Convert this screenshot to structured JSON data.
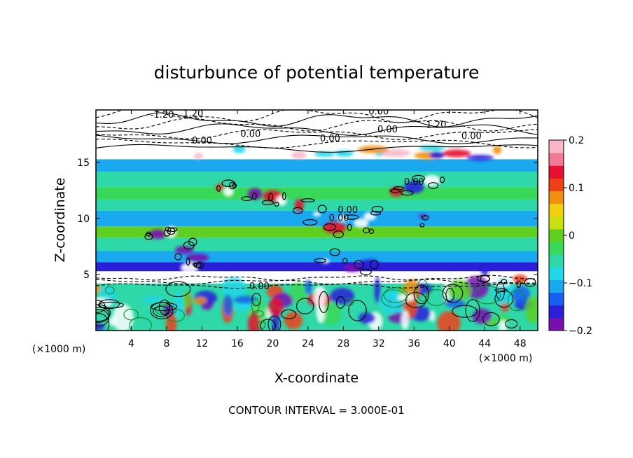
{
  "chart_data": {
    "type": "heatmap",
    "title": "disturbunce of potential temperature",
    "xlabel": "X-coordinate",
    "ylabel": "Z-coordinate",
    "x_unit_label": "(×1000 m)",
    "x_unit_label_right": "(×1000 m)",
    "x_ticks": [
      4,
      8,
      12,
      16,
      20,
      24,
      28,
      32,
      36,
      40,
      44,
      48
    ],
    "y_ticks": [
      5,
      10,
      15
    ],
    "xlim": [
      0,
      50
    ],
    "ylim": [
      0,
      19.7
    ],
    "colorbar": {
      "range": [
        -0.2,
        0.2
      ],
      "tick_values": [
        0.2,
        0.1,
        0,
        -0.1,
        -0.2
      ],
      "tick_labels": [
        "0.2",
        "0.1",
        "0",
        "−0.1",
        "−0.2"
      ],
      "colors": [
        "#7a0fb0",
        "#2a1ed8",
        "#1560f0",
        "#1aa8f0",
        "#1fd8e8",
        "#2ed8a8",
        "#38d858",
        "#5fd020",
        "#c8e010",
        "#f0d010",
        "#f09010",
        "#f04018",
        "#e81030",
        "#f07a96",
        "#f8b8c8"
      ]
    },
    "bands": [
      {
        "z_from": 0.0,
        "z_to": 4.2,
        "value": -0.05
      },
      {
        "z_from": 4.2,
        "z_to": 5.3,
        "value": null
      },
      {
        "z_from": 5.3,
        "z_to": 6.1,
        "value": -0.17
      },
      {
        "z_from": 6.1,
        "z_to": 7.1,
        "value": -0.1
      },
      {
        "z_from": 7.1,
        "z_to": 8.3,
        "value": -0.04
      },
      {
        "z_from": 8.3,
        "z_to": 9.3,
        "value": -0.01
      },
      {
        "z_from": 9.3,
        "z_to": 10.7,
        "value": -0.1
      },
      {
        "z_from": 10.7,
        "z_to": 11.7,
        "value": -0.06
      },
      {
        "z_from": 11.7,
        "z_to": 12.8,
        "value": -0.02
      },
      {
        "z_from": 12.8,
        "z_to": 14.2,
        "value": -0.05
      },
      {
        "z_from": 14.2,
        "z_to": 15.3,
        "value": -0.1
      },
      {
        "z_from": 15.3,
        "z_to": 16.2,
        "value": null
      },
      {
        "z_from": 16.2,
        "z_to": 19.7,
        "value": null
      }
    ],
    "contour_labels": [
      {
        "text": "-1.20",
        "x": 7.5,
        "z": 19.0
      },
      {
        "text": "1.20",
        "x": 11.0,
        "z": 19.1
      },
      {
        "text": "0.00",
        "x": 17.5,
        "z": 17.3
      },
      {
        "text": "0.00",
        "x": 12.0,
        "z": 16.7
      },
      {
        "text": "0.00",
        "x": 26.5,
        "z": 16.9
      },
      {
        "text": "0.00",
        "x": 33.0,
        "z": 17.7
      },
      {
        "text": "0.00",
        "x": 32.0,
        "z": 19.3
      },
      {
        "text": "1.20",
        "x": 38.5,
        "z": 18.1
      },
      {
        "text": "0.00",
        "x": 42.5,
        "z": 17.1
      },
      {
        "text": "0.00",
        "x": 36.0,
        "z": 13.0
      },
      {
        "text": "0.00",
        "x": 27.5,
        "z": 9.8
      },
      {
        "text": "0.00",
        "x": 28.5,
        "z": 10.5
      },
      {
        "text": "0.00",
        "x": 18.5,
        "z": 3.7
      }
    ],
    "contour_interval_note": "CONTOUR INTERVAL = 3.000E-01"
  }
}
